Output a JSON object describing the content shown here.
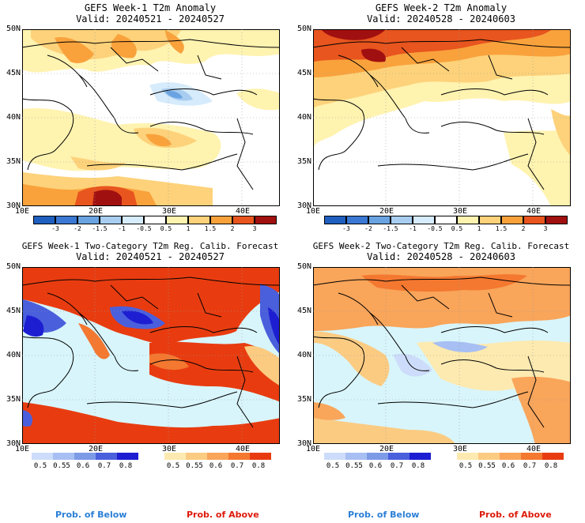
{
  "panels": [
    {
      "title": "GEFS Week-1 T2m Anomaly",
      "valid": "Valid: 20240521 - 20240527"
    },
    {
      "title": "GEFS Week-2 T2m Anomaly",
      "valid": "Valid: 20240528 - 20240603"
    },
    {
      "title": "GEFS Week-1 Two-Category T2m Reg. Calib. Forecast",
      "valid": "Valid: 20240521 - 20240527"
    },
    {
      "title": "GEFS Week-2 Two-Category T2m Reg. Calib. Forecast",
      "valid": "Valid: 20240528 - 20240603"
    }
  ],
  "lat_labels": [
    "50N",
    "45N",
    "40N",
    "35N",
    "30N"
  ],
  "lon_labels": [
    "10E",
    "20E",
    "30E",
    "40E"
  ],
  "anomaly_colorbar": {
    "labels": [
      "-3",
      "-2",
      "-1.5",
      "-1",
      "-0.5",
      "0.5",
      "1",
      "1.5",
      "2",
      "3"
    ],
    "colors": [
      "#1f5fbf",
      "#3a78d4",
      "#6aa3e2",
      "#a8cdf0",
      "#d6ebfb",
      "#ffffff",
      "#fff3b0",
      "#fdd27a",
      "#f9a23c",
      "#e8551e",
      "#a11010"
    ]
  },
  "prob_below": {
    "labels": [
      "0.5",
      "0.55",
      "0.6",
      "0.7",
      "0.8"
    ],
    "colors": [
      "#ccdcfa",
      "#a7bff2",
      "#7d9ae6",
      "#4a5fdc",
      "#1d1ed2"
    ]
  },
  "prob_above": {
    "labels": [
      "0.5",
      "0.55",
      "0.6",
      "0.7",
      "0.8"
    ],
    "colors": [
      "#fdeab0",
      "#fbcb82",
      "#f9a55a",
      "#f47830",
      "#e83c10"
    ]
  },
  "legend": {
    "below": "Prob. of Below",
    "above": "Prob. of Above"
  },
  "colors": {
    "below_text": "#2a7fd6",
    "above_text": "#dd1a0a",
    "sea": "#d8f5fb"
  }
}
